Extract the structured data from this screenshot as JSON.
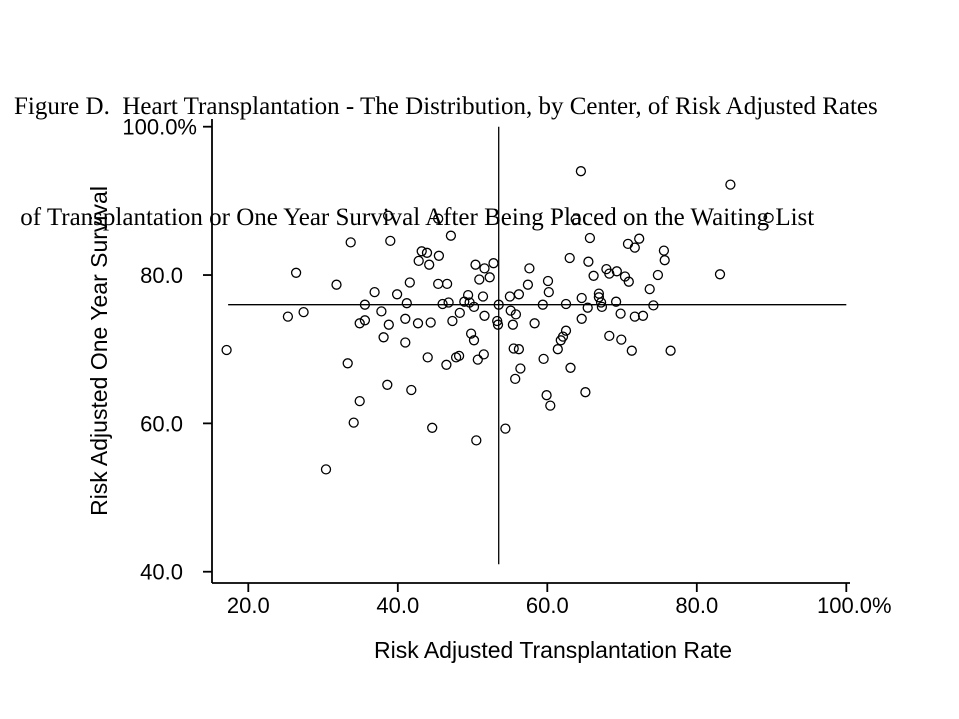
{
  "figure": {
    "title_line1": "Figure D.  Heart Transplantation - The Distribution, by Center, of Risk Adjusted Rates",
    "title_line2": " of Transplantation or One Year Survival After Being Placed on the Waiting List"
  },
  "colors": {
    "foreground": "#000000",
    "background": "#ffffff"
  },
  "chart_data": {
    "type": "scatter",
    "title": "Figure D. Heart Transplantation - The Distribution, by Center, of Risk Adjusted Rates of Transplantation or One Year Survival After Being Placed on the Waiting List",
    "xlabel": "Risk Adjusted Transplantation Rate",
    "ylabel": "Risk Adjusted One Year Survival",
    "x_ticks": [
      {
        "value": 20,
        "label": "20.0"
      },
      {
        "value": 40,
        "label": "40.0"
      },
      {
        "value": 60,
        "label": "60.0"
      },
      {
        "value": 80,
        "label": "80.0"
      },
      {
        "value": 100,
        "label": "100.0%"
      }
    ],
    "y_ticks": [
      {
        "value": 100,
        "label": "100.0%"
      },
      {
        "value": 80,
        "label": "80.0"
      },
      {
        "value": 60,
        "label": "60.0"
      },
      {
        "value": 40,
        "label": "40.0"
      }
    ],
    "xlim": [
      15,
      101
    ],
    "ylim": [
      38.5,
      101
    ],
    "grid": false,
    "legend": false,
    "marker": "open-circle",
    "reference_lines": {
      "vertical": {
        "x": 53.5,
        "y_from": 41.0,
        "y_to": 100.0
      },
      "horizontal": {
        "y": 76.0,
        "x_from": 17.3,
        "x_to": 100.0
      }
    },
    "points": [
      [
        17.1,
        69.9
      ],
      [
        25.3,
        74.4
      ],
      [
        26.4,
        80.3
      ],
      [
        27.4,
        75.0
      ],
      [
        30.4,
        53.8
      ],
      [
        31.8,
        78.7
      ],
      [
        33.3,
        68.1
      ],
      [
        33.7,
        84.4
      ],
      [
        34.1,
        60.1
      ],
      [
        34.9,
        63.0
      ],
      [
        34.9,
        73.5
      ],
      [
        35.6,
        73.9
      ],
      [
        35.6,
        76.0
      ],
      [
        36.9,
        77.7
      ],
      [
        37.8,
        75.1
      ],
      [
        38.1,
        71.6
      ],
      [
        38.6,
        65.2
      ],
      [
        38.7,
        88.0
      ],
      [
        38.8,
        73.3
      ],
      [
        39.0,
        84.6
      ],
      [
        39.9,
        77.4
      ],
      [
        41.0,
        70.9
      ],
      [
        41.0,
        74.1
      ],
      [
        41.2,
        76.2
      ],
      [
        41.6,
        79.0
      ],
      [
        41.8,
        64.5
      ],
      [
        42.7,
        73.5
      ],
      [
        42.8,
        81.9
      ],
      [
        43.2,
        83.2
      ],
      [
        43.9,
        83.0
      ],
      [
        44.0,
        68.9
      ],
      [
        44.2,
        81.4
      ],
      [
        44.4,
        73.6
      ],
      [
        44.6,
        59.4
      ],
      [
        45.4,
        78.8
      ],
      [
        45.4,
        87.6
      ],
      [
        45.5,
        82.6
      ],
      [
        46.0,
        76.1
      ],
      [
        46.5,
        67.9
      ],
      [
        46.6,
        78.8
      ],
      [
        46.8,
        76.3
      ],
      [
        47.1,
        85.3
      ],
      [
        47.3,
        73.8
      ],
      [
        47.8,
        68.9
      ],
      [
        48.2,
        69.1
      ],
      [
        48.3,
        74.9
      ],
      [
        48.9,
        76.4
      ],
      [
        49.4,
        77.3
      ],
      [
        49.6,
        76.3
      ],
      [
        49.8,
        72.1
      ],
      [
        50.2,
        71.2
      ],
      [
        50.2,
        75.7
      ],
      [
        50.4,
        81.4
      ],
      [
        50.5,
        57.7
      ],
      [
        50.7,
        68.6
      ],
      [
        50.9,
        79.4
      ],
      [
        51.4,
        77.1
      ],
      [
        51.5,
        69.3
      ],
      [
        51.6,
        74.5
      ],
      [
        51.6,
        80.9
      ],
      [
        52.3,
        79.7
      ],
      [
        52.8,
        81.6
      ],
      [
        53.3,
        73.8
      ],
      [
        53.4,
        73.3
      ],
      [
        53.5,
        76.0
      ],
      [
        54.4,
        59.3
      ],
      [
        55.0,
        77.1
      ],
      [
        55.1,
        75.2
      ],
      [
        55.4,
        73.3
      ],
      [
        55.5,
        70.1
      ],
      [
        55.7,
        66.0
      ],
      [
        55.8,
        74.7
      ],
      [
        56.2,
        70.0
      ],
      [
        56.2,
        77.4
      ],
      [
        56.4,
        67.4
      ],
      [
        57.4,
        78.7
      ],
      [
        57.6,
        80.9
      ],
      [
        58.3,
        73.5
      ],
      [
        59.4,
        76.0
      ],
      [
        59.5,
        68.7
      ],
      [
        59.9,
        63.8
      ],
      [
        60.1,
        79.2
      ],
      [
        60.2,
        77.7
      ],
      [
        60.4,
        62.4
      ],
      [
        61.4,
        70.0
      ],
      [
        61.8,
        71.2
      ],
      [
        62.1,
        71.7
      ],
      [
        62.5,
        72.5
      ],
      [
        62.5,
        76.1
      ],
      [
        63.0,
        82.3
      ],
      [
        63.1,
        67.5
      ],
      [
        63.8,
        87.5
      ],
      [
        64.5,
        94.0
      ],
      [
        64.6,
        74.1
      ],
      [
        64.6,
        76.9
      ],
      [
        65.1,
        64.2
      ],
      [
        65.4,
        75.6
      ],
      [
        65.5,
        81.8
      ],
      [
        65.7,
        85.0
      ],
      [
        66.2,
        79.9
      ],
      [
        66.9,
        77.5
      ],
      [
        66.9,
        77.0
      ],
      [
        67.2,
        76.3
      ],
      [
        67.3,
        75.7
      ],
      [
        67.9,
        80.8
      ],
      [
        68.3,
        80.2
      ],
      [
        68.3,
        71.8
      ],
      [
        69.2,
        76.4
      ],
      [
        69.3,
        80.5
      ],
      [
        69.8,
        74.8
      ],
      [
        69.9,
        71.3
      ],
      [
        70.4,
        79.8
      ],
      [
        70.9,
        79.1
      ],
      [
        70.8,
        84.2
      ],
      [
        71.7,
        83.7
      ],
      [
        71.3,
        69.8
      ],
      [
        71.7,
        74.4
      ],
      [
        72.3,
        84.9
      ],
      [
        72.8,
        74.5
      ],
      [
        73.7,
        78.1
      ],
      [
        74.2,
        75.9
      ],
      [
        74.8,
        80.0
      ],
      [
        75.6,
        83.3
      ],
      [
        75.7,
        82.0
      ],
      [
        76.5,
        69.8
      ],
      [
        83.1,
        80.1
      ],
      [
        84.5,
        92.2
      ],
      [
        89.6,
        87.7
      ]
    ]
  }
}
